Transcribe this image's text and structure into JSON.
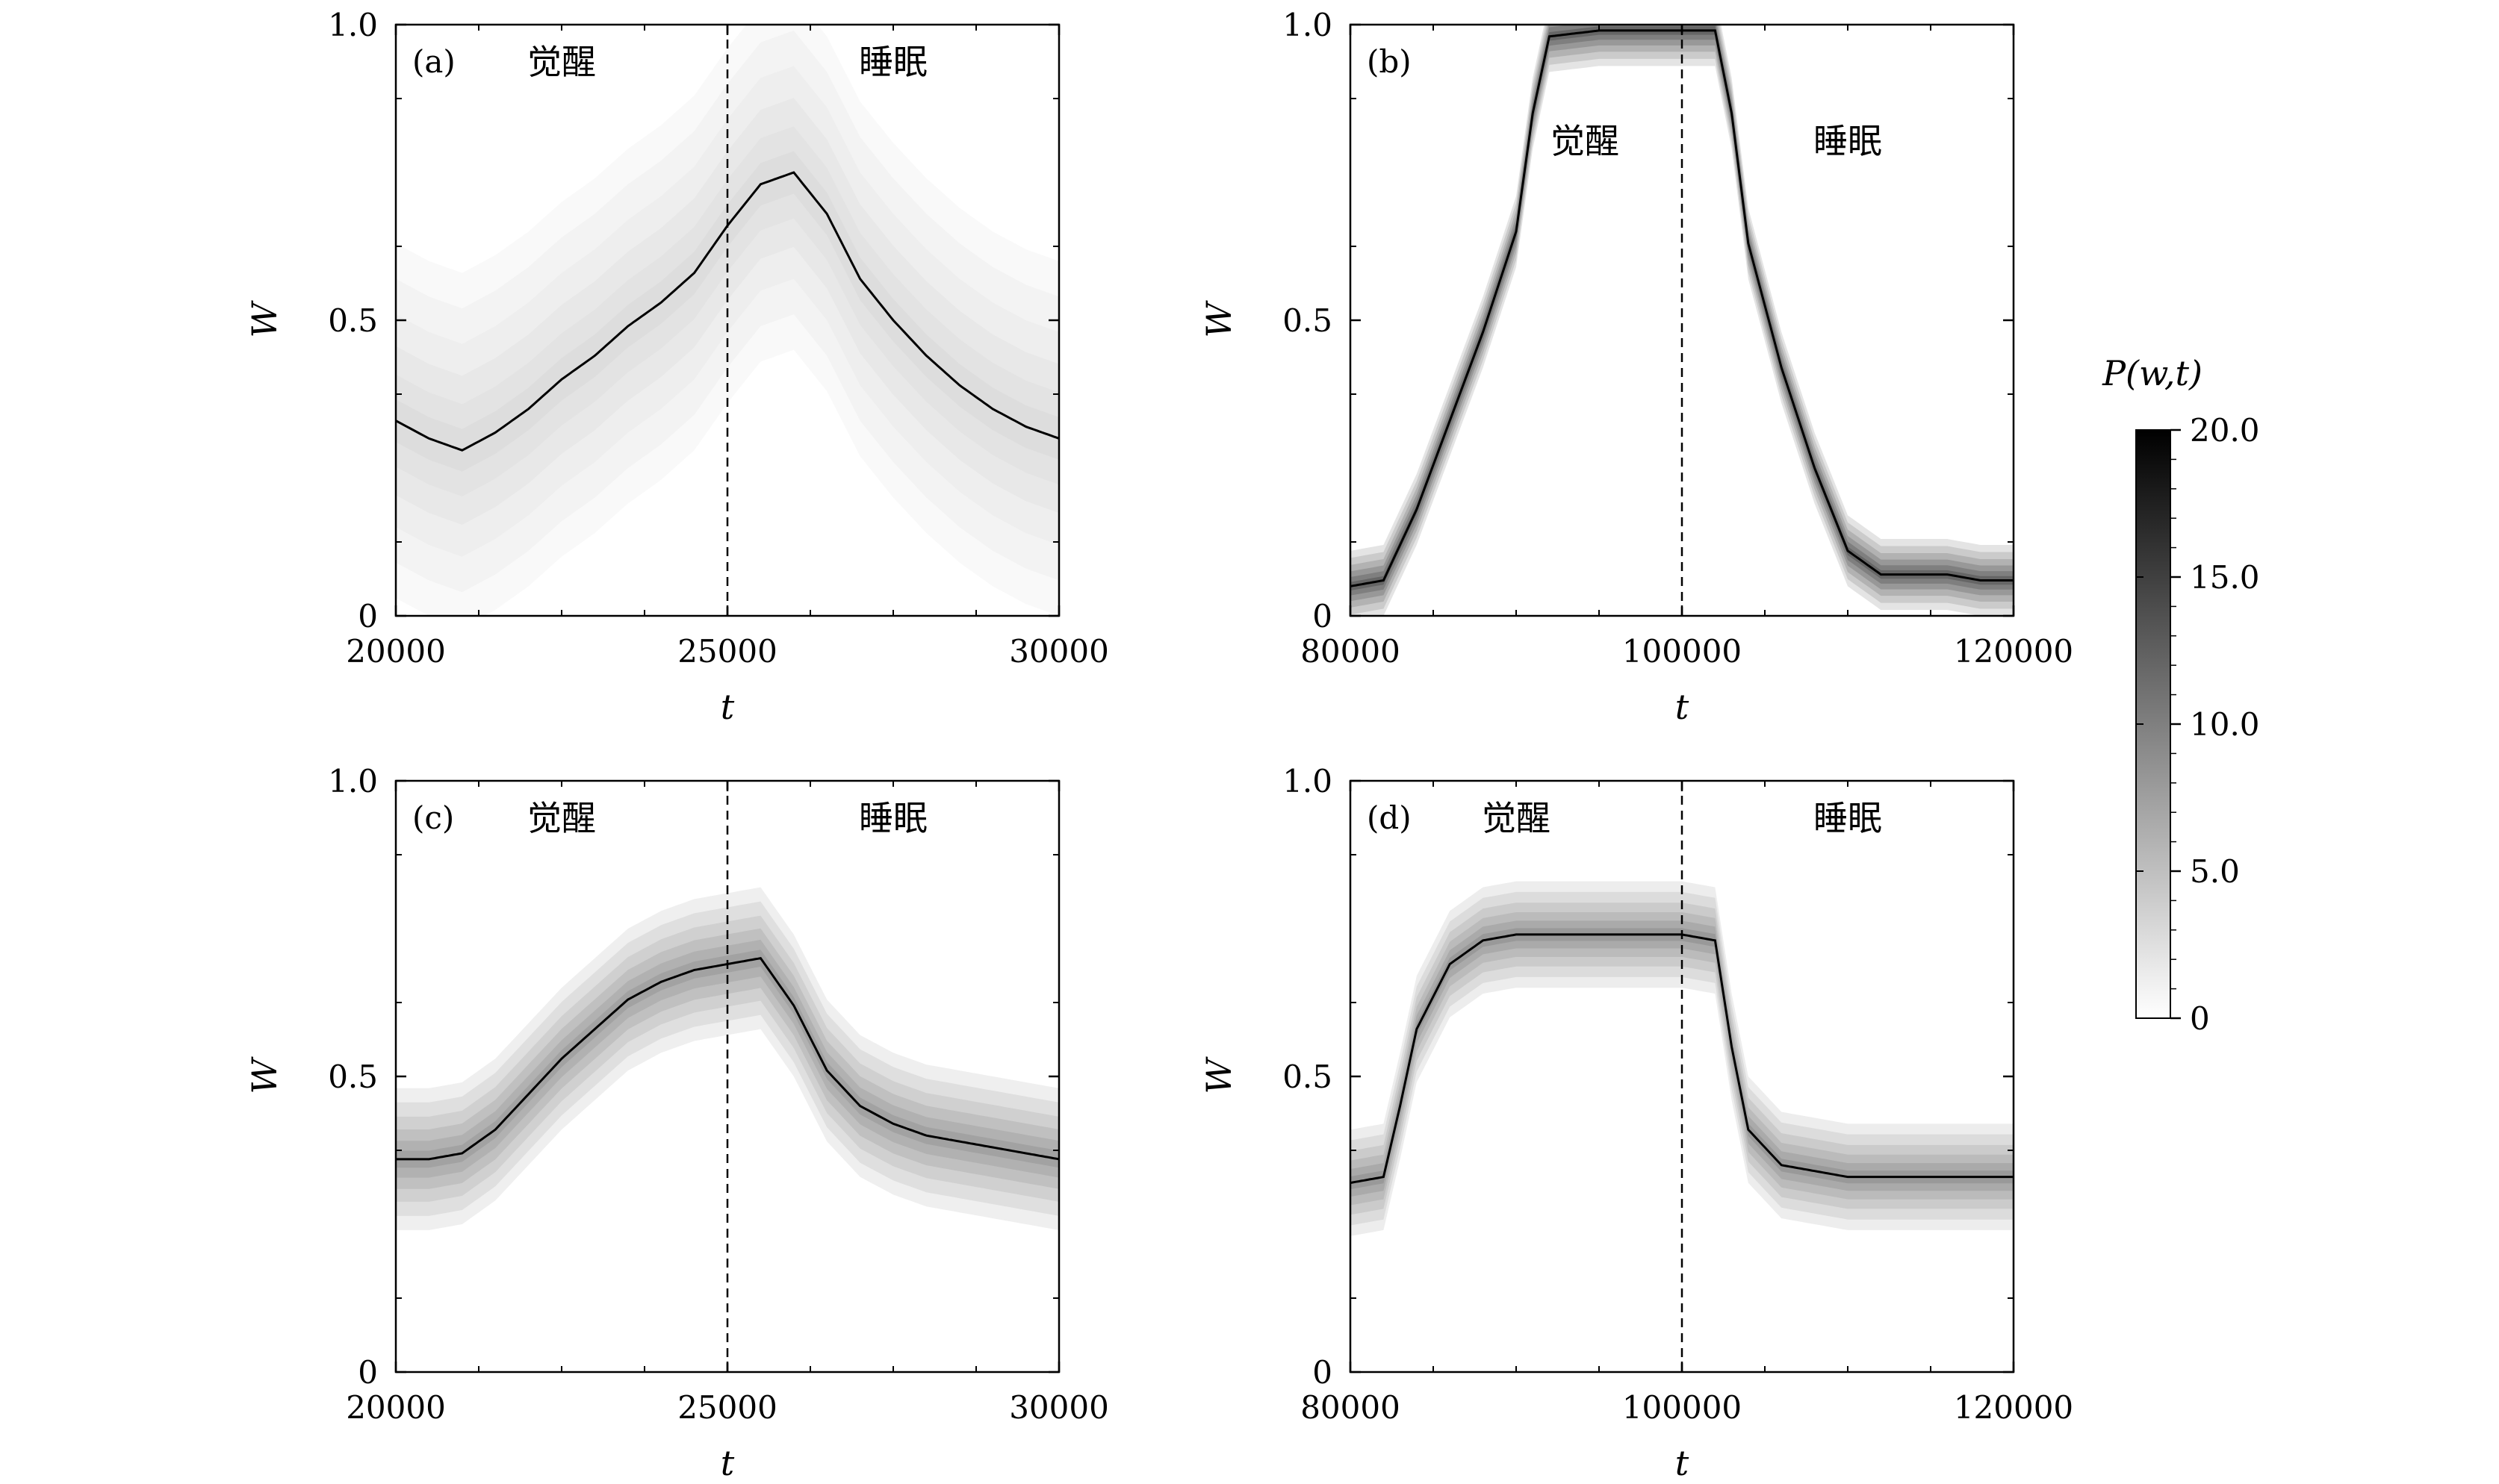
{
  "chart_data": [
    {
      "panel": "(a)",
      "type": "area",
      "xlabel": "t",
      "ylabel": "W",
      "xlim": [
        20000,
        30000
      ],
      "ylim": [
        0,
        1.0
      ],
      "xticks": [
        "20000",
        "25000",
        "30000"
      ],
      "yticks": [
        "0",
        "0.5",
        "1.0"
      ],
      "divider_x": 25000,
      "region_labels": {
        "left": "觉醒",
        "right": "睡眠"
      },
      "mean_curve": {
        "x": [
          20000,
          20500,
          21000,
          21500,
          22000,
          22500,
          23000,
          23500,
          24000,
          24500,
          25000,
          25500,
          26000,
          26500,
          27000,
          27500,
          28000,
          28500,
          29000,
          29500,
          30000
        ],
        "y": [
          0.33,
          0.3,
          0.28,
          0.31,
          0.35,
          0.4,
          0.44,
          0.49,
          0.53,
          0.58,
          0.66,
          0.73,
          0.75,
          0.68,
          0.57,
          0.5,
          0.44,
          0.39,
          0.35,
          0.32,
          0.3
        ]
      },
      "band_width": 0.3,
      "band_intensity": 0.2
    },
    {
      "panel": "(b)",
      "type": "area",
      "xlabel": "t",
      "ylabel": "W",
      "xlim": [
        80000,
        120000
      ],
      "ylim": [
        0,
        1.0
      ],
      "xticks": [
        "80000",
        "100000",
        "120000"
      ],
      "yticks": [
        "0",
        "0.5",
        "1.0"
      ],
      "divider_x": 100000,
      "region_labels": {
        "left": "觉醒",
        "right": "睡眠"
      },
      "mean_curve": {
        "x": [
          80000,
          82000,
          84000,
          86000,
          88000,
          90000,
          91000,
          92000,
          95000,
          98000,
          100000,
          102000,
          103000,
          104000,
          106000,
          108000,
          110000,
          112000,
          114000,
          116000,
          118000,
          120000
        ],
        "y": [
          0.05,
          0.06,
          0.18,
          0.33,
          0.48,
          0.65,
          0.85,
          0.98,
          0.99,
          0.99,
          0.99,
          0.99,
          0.85,
          0.63,
          0.42,
          0.25,
          0.11,
          0.07,
          0.07,
          0.07,
          0.06,
          0.06
        ]
      },
      "band_width": 0.06,
      "band_intensity": 0.9
    },
    {
      "panel": "(c)",
      "type": "area",
      "xlabel": "t",
      "ylabel": "W",
      "xlim": [
        20000,
        30000
      ],
      "ylim": [
        0,
        1.0
      ],
      "xticks": [
        "20000",
        "25000",
        "30000"
      ],
      "yticks": [
        "0",
        "0.5",
        "1.0"
      ],
      "divider_x": 25000,
      "region_labels": {
        "left": "觉醒",
        "right": "睡眠"
      },
      "mean_curve": {
        "x": [
          20000,
          20500,
          21000,
          21500,
          22000,
          22500,
          23000,
          23500,
          24000,
          24500,
          25000,
          25500,
          26000,
          26500,
          27000,
          27500,
          28000,
          28500,
          29000,
          29500,
          30000
        ],
        "y": [
          0.36,
          0.36,
          0.37,
          0.41,
          0.47,
          0.53,
          0.58,
          0.63,
          0.66,
          0.68,
          0.69,
          0.7,
          0.62,
          0.51,
          0.45,
          0.42,
          0.4,
          0.39,
          0.38,
          0.37,
          0.36
        ]
      },
      "band_width": 0.12,
      "band_intensity": 0.55
    },
    {
      "panel": "(d)",
      "type": "area",
      "xlabel": "t",
      "ylabel": "W",
      "xlim": [
        80000,
        120000
      ],
      "ylim": [
        0,
        1.0
      ],
      "xticks": [
        "80000",
        "100000",
        "120000"
      ],
      "yticks": [
        "0",
        "0.5",
        "1.0"
      ],
      "divider_x": 100000,
      "region_labels": {
        "left": "觉醒",
        "right": "睡眠"
      },
      "mean_curve": {
        "x": [
          80000,
          82000,
          83000,
          84000,
          86000,
          88000,
          90000,
          95000,
          100000,
          102000,
          103000,
          104000,
          106000,
          108000,
          110000,
          115000,
          120000
        ],
        "y": [
          0.32,
          0.33,
          0.45,
          0.58,
          0.69,
          0.73,
          0.74,
          0.74,
          0.74,
          0.73,
          0.55,
          0.41,
          0.35,
          0.34,
          0.33,
          0.33,
          0.33
        ]
      },
      "band_width": 0.09,
      "band_intensity": 0.6
    }
  ],
  "colorbar": {
    "title": "P(w,t)",
    "range": [
      0,
      20.0
    ],
    "tick_labels": [
      "0",
      "5.0",
      "10.0",
      "15.0",
      "20.0"
    ]
  }
}
